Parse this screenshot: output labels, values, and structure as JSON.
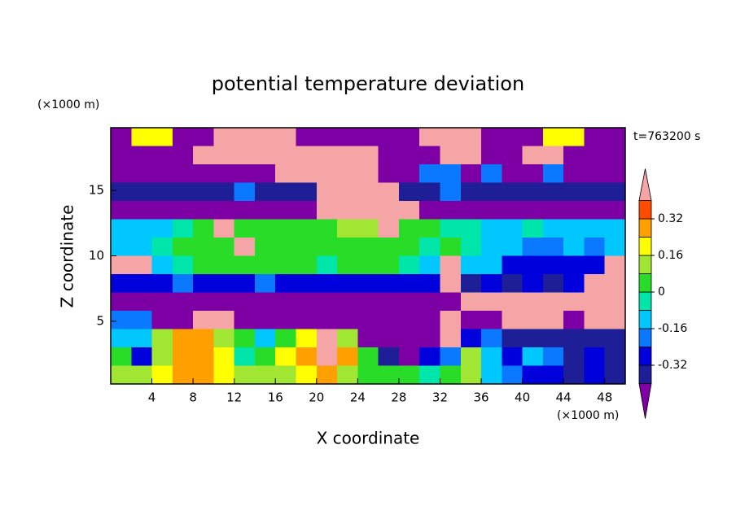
{
  "chart_data": {
    "type": "contour",
    "title": "potential temperature deviation",
    "x_label": "X coordinate",
    "y_label": "Z coordinate",
    "x_unit": "(×1000 m)",
    "y_unit": "(×1000 m)",
    "time_label": "t=763200 s",
    "xlim": [
      0,
      50
    ],
    "ylim": [
      0.2,
      19.8
    ],
    "xticks": [
      4,
      8,
      12,
      16,
      20,
      24,
      28,
      32,
      36,
      40,
      44,
      48
    ],
    "yticks": [
      5,
      10,
      15
    ],
    "levels": [
      -0.4,
      -0.32,
      -0.24,
      -0.16,
      -0.08,
      0,
      0.08,
      0.16,
      0.24,
      0.32,
      0.4
    ],
    "colorbar_ticks": [
      -0.32,
      -0.16,
      0,
      0.16,
      0.32
    ],
    "colors": [
      "#7d00a5",
      "#1e1e96",
      "#0000dc",
      "#0a78ff",
      "#00c8ff",
      "#00e6aa",
      "#28dc28",
      "#a0e632",
      "#ffff00",
      "#ffa000",
      "#ff4b00",
      "#f5a5a5"
    ],
    "x": [
      1,
      3,
      5,
      7,
      9,
      11,
      13,
      15,
      17,
      19,
      21,
      23,
      25,
      27,
      29,
      31,
      33,
      35,
      37,
      39,
      41,
      43,
      45,
      47,
      49
    ],
    "y": [
      19.1,
      17.7,
      16.3,
      14.9,
      13.5,
      12.1,
      10.7,
      9.3,
      7.9,
      6.5,
      5.1,
      3.7,
      2.3,
      0.9
    ],
    "z": [
      [
        -0.5,
        0.2,
        0.2,
        -0.5,
        -0.5,
        0.5,
        0.5,
        0.5,
        0.5,
        -0.5,
        -0.5,
        -0.5,
        -0.5,
        -0.5,
        -0.5,
        0.5,
        0.5,
        0.5,
        -0.5,
        -0.5,
        -0.5,
        0.2,
        0.2,
        -0.5,
        -0.5
      ],
      [
        -0.5,
        -0.5,
        -0.5,
        -0.5,
        0.5,
        0.5,
        0.5,
        0.5,
        0.5,
        0.5,
        0.5,
        0.5,
        0.5,
        -0.5,
        -0.5,
        -0.5,
        0.5,
        0.5,
        -0.5,
        -0.5,
        0.5,
        0.5,
        -0.5,
        -0.5,
        -0.5
      ],
      [
        -0.5,
        -0.5,
        -0.5,
        -0.5,
        -0.5,
        -0.5,
        -0.5,
        -0.5,
        0.5,
        0.5,
        0.5,
        0.5,
        0.5,
        -0.5,
        -0.5,
        -0.2,
        -0.2,
        -0.5,
        -0.2,
        -0.5,
        -0.5,
        -0.2,
        -0.5,
        -0.5,
        -0.5
      ],
      [
        -0.36,
        -0.36,
        -0.36,
        -0.36,
        -0.36,
        -0.36,
        -0.2,
        -0.36,
        -0.36,
        -0.36,
        0.5,
        0.5,
        0.5,
        0.5,
        -0.36,
        -0.36,
        -0.2,
        -0.36,
        -0.36,
        -0.36,
        -0.36,
        -0.36,
        -0.36,
        -0.36,
        -0.36
      ],
      [
        -0.5,
        -0.5,
        -0.5,
        -0.5,
        -0.5,
        -0.5,
        -0.5,
        -0.5,
        -0.5,
        -0.5,
        0.5,
        0.5,
        0.5,
        0.5,
        0.5,
        -0.5,
        -0.5,
        -0.5,
        -0.5,
        -0.5,
        -0.5,
        -0.5,
        -0.5,
        -0.5,
        -0.5
      ],
      [
        -0.1,
        -0.1,
        -0.1,
        -0.05,
        0.02,
        0.5,
        0.02,
        0.02,
        0.02,
        0.02,
        0.02,
        0.08,
        0.08,
        0.5,
        0.02,
        0.02,
        -0.05,
        -0.05,
        -0.1,
        -0.1,
        -0.05,
        -0.1,
        -0.1,
        -0.1,
        -0.1
      ],
      [
        -0.15,
        -0.1,
        -0.05,
        0.02,
        0.05,
        0.05,
        0.5,
        0.05,
        0.05,
        0.02,
        0.02,
        0.05,
        0.02,
        0.02,
        0.02,
        -0.05,
        0.02,
        -0.05,
        -0.15,
        -0.15,
        -0.2,
        -0.2,
        -0.15,
        -0.2,
        -0.15
      ],
      [
        0.5,
        0.5,
        -0.1,
        -0.05,
        0.02,
        0.02,
        0.02,
        0.02,
        0.02,
        0.02,
        -0.05,
        0.02,
        0.02,
        0.02,
        -0.05,
        -0.1,
        0.5,
        -0.1,
        -0.15,
        -0.25,
        -0.25,
        -0.3,
        -0.25,
        -0.25,
        0.5
      ],
      [
        -0.25,
        -0.3,
        -0.25,
        -0.2,
        -0.25,
        -0.3,
        -0.25,
        -0.2,
        -0.25,
        -0.3,
        -0.25,
        -0.3,
        -0.25,
        -0.3,
        -0.25,
        -0.3,
        0.5,
        -0.35,
        -0.3,
        -0.35,
        -0.3,
        -0.35,
        -0.3,
        0.5,
        0.5
      ],
      [
        -0.5,
        -0.5,
        -0.5,
        -0.5,
        -0.5,
        -0.5,
        -0.5,
        -0.5,
        -0.5,
        -0.5,
        -0.5,
        -0.5,
        -0.5,
        -0.5,
        -0.5,
        -0.5,
        -0.5,
        0.5,
        0.5,
        0.5,
        0.5,
        0.5,
        0.5,
        0.5,
        0.5
      ],
      [
        -0.2,
        -0.2,
        -0.5,
        -0.5,
        0.5,
        0.5,
        -0.5,
        -0.5,
        -0.5,
        -0.5,
        -0.5,
        -0.5,
        -0.5,
        -0.5,
        -0.5,
        -0.5,
        0.5,
        -0.5,
        -0.5,
        0.5,
        0.5,
        0.5,
        -0.5,
        0.5,
        0.5
      ],
      [
        -0.1,
        -0.1,
        0.1,
        0.25,
        0.3,
        0.1,
        0.0,
        -0.1,
        0.05,
        0.2,
        0.5,
        0.1,
        -0.5,
        -0.5,
        -0.5,
        -0.5,
        0.5,
        -0.3,
        -0.2,
        -0.35,
        -0.35,
        -0.35,
        -0.35,
        -0.35,
        -0.35
      ],
      [
        0.05,
        -0.3,
        0.1,
        0.3,
        0.25,
        0.2,
        -0.05,
        0.05,
        0.2,
        0.3,
        0.5,
        0.3,
        0.05,
        -0.4,
        -0.5,
        -0.3,
        -0.2,
        0.1,
        -0.1,
        -0.3,
        -0.15,
        -0.2,
        -0.35,
        -0.3,
        -0.35
      ],
      [
        0.1,
        0.15,
        0.2,
        0.25,
        0.3,
        0.2,
        0.15,
        0.1,
        0.15,
        0.2,
        0.3,
        0.15,
        0.05,
        0.02,
        0.05,
        -0.05,
        0.0,
        0.1,
        -0.1,
        -0.2,
        -0.3,
        -0.3,
        -0.35,
        -0.3,
        -0.35
      ]
    ]
  }
}
